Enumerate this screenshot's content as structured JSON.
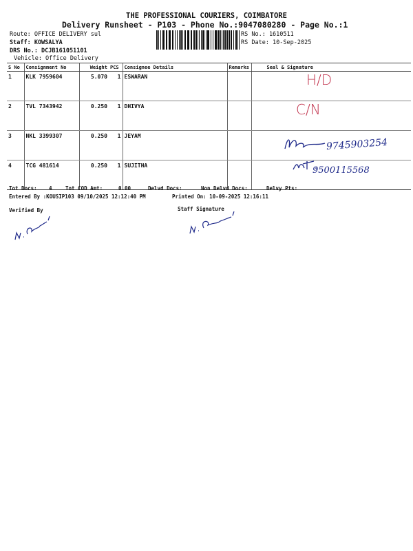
{
  "header": {
    "company": "THE PROFESSIONAL COURIERS, COIMBATORE",
    "subtitle": "Delivery Runsheet - P103 - Phone No.:9047080280 - Page No.:1",
    "route": "Route: OFFICE DELIVERY sul",
    "staff": "Staff: KOWSALYA",
    "drs_no": "DRS No.: DCJB161051101",
    "vehicle": "Vehicle: Office Delivery",
    "rs_no": "RS No.: 1610511",
    "rs_date": "RS Date: 10-Sep-2025"
  },
  "table": {
    "columns": [
      "S No",
      "Consignment No",
      "Weight",
      "PCS",
      "Consignee Details",
      "Remarks",
      "Seal & Signature"
    ],
    "rows": [
      {
        "sno": "1",
        "consignment": "KLK 7959604",
        "weight": "5.070",
        "pcs": "1",
        "consignee": "ESWARAN",
        "remarks": "",
        "seal": "H/D",
        "seal_color": "#c0304a"
      },
      {
        "sno": "2",
        "consignment": "TVL 7343942",
        "weight": "0.250",
        "pcs": "1",
        "consignee": "DHIVYA",
        "remarks": "",
        "seal": "C/N",
        "seal_color": "#c0304a"
      },
      {
        "sno": "3",
        "consignment": "NKL 3399307",
        "weight": "0.250",
        "pcs": "1",
        "consignee": "JEYAM",
        "remarks": "",
        "seal": "9745903254",
        "seal_color": "#1f2a8a"
      },
      {
        "sno": "4",
        "consignment": "TCG 481614",
        "weight": "0.250",
        "pcs": "1",
        "consignee": "SUJITHA",
        "remarks": "",
        "seal": "9500115568",
        "seal_color": "#1f2a8a"
      }
    ]
  },
  "footer": {
    "tot_docs_label": "Tot Docs:",
    "tot_docs": "4",
    "tot_cod_label": "Tot COD Amt:",
    "tot_cod": "0.00",
    "delvd_docs": "Delvd Docs:",
    "non_delvd_docs": "Non Delvd Docs:",
    "delvy_pts": "Delvy Pts:",
    "entered_by": "Entered By :KOUSIP103 09/10/2025 12:12:40 PM",
    "printed_on": "Printed On: 10-09-2025 12:16:11",
    "verified_by": "Verified By",
    "staff_signature": "Staff Signature"
  }
}
